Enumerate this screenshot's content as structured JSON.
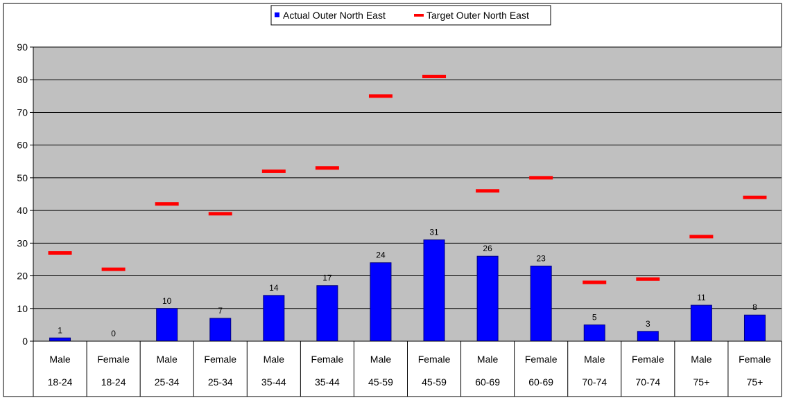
{
  "chart_data": {
    "type": "bar",
    "categories": [
      {
        "gender": "Male",
        "age": "18-24"
      },
      {
        "gender": "Female",
        "age": "18-24"
      },
      {
        "gender": "Male",
        "age": "25-34"
      },
      {
        "gender": "Female",
        "age": "25-34"
      },
      {
        "gender": "Male",
        "age": "35-44"
      },
      {
        "gender": "Female",
        "age": "35-44"
      },
      {
        "gender": "Male",
        "age": "45-59"
      },
      {
        "gender": "Female",
        "age": "45-59"
      },
      {
        "gender": "Male",
        "age": "60-69"
      },
      {
        "gender": "Female",
        "age": "60-69"
      },
      {
        "gender": "Male",
        "age": "70-74"
      },
      {
        "gender": "Female",
        "age": "70-74"
      },
      {
        "gender": "Male",
        "age": "75+"
      },
      {
        "gender": "Female",
        "age": "75+"
      }
    ],
    "series": [
      {
        "name": "Actual Outer North East",
        "kind": "bar",
        "color": "#0000ff",
        "values": [
          1,
          0,
          10,
          7,
          14,
          17,
          24,
          31,
          26,
          23,
          5,
          3,
          11,
          8
        ]
      },
      {
        "name": "Target Outer North East",
        "kind": "marker-dash",
        "color": "#ff0000",
        "values": [
          27,
          22,
          42,
          39,
          52,
          53,
          75,
          81,
          46,
          50,
          18,
          19,
          32,
          44
        ]
      }
    ],
    "y_ticks": [
      "0",
      "10",
      "20",
      "30",
      "40",
      "50",
      "60",
      "70",
      "80",
      "90"
    ],
    "ylim": [
      0,
      90
    ],
    "grid": true,
    "plot_background": "#c0c0c0",
    "legend_position": "top-center"
  }
}
